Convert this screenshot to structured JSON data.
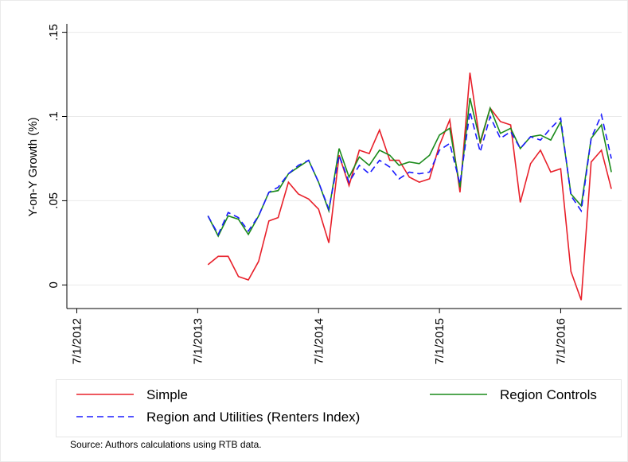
{
  "chart_data": {
    "type": "line",
    "y_label": "Y-on-Y Growth (%)",
    "note": "Source: Authors calculations using RTB data.",
    "x": [
      "2013-08-01",
      "2013-09-01",
      "2013-10-01",
      "2013-11-01",
      "2013-12-01",
      "2014-01-01",
      "2014-02-01",
      "2014-03-01",
      "2014-04-01",
      "2014-05-01",
      "2014-06-01",
      "2014-07-01",
      "2014-08-01",
      "2014-09-01",
      "2014-10-01",
      "2014-11-01",
      "2014-12-01",
      "2015-01-01",
      "2015-02-01",
      "2015-03-01",
      "2015-04-01",
      "2015-05-01",
      "2015-06-01",
      "2015-07-01",
      "2015-08-01",
      "2015-09-01",
      "2015-10-01",
      "2015-11-01",
      "2015-12-01",
      "2016-01-01",
      "2016-02-01",
      "2016-03-01",
      "2016-04-01",
      "2016-05-01",
      "2016-06-01",
      "2016-07-01",
      "2016-08-01",
      "2016-09-01",
      "2016-10-01",
      "2016-11-01",
      "2016-12-01"
    ],
    "series": [
      {
        "name": "Simple",
        "color": "#e8202a",
        "dashed": false,
        "values": [
          0.012,
          0.017,
          0.017,
          0.005,
          0.003,
          0.014,
          0.038,
          0.04,
          0.061,
          0.054,
          0.051,
          0.045,
          0.025,
          0.077,
          0.059,
          0.08,
          0.078,
          0.092,
          0.074,
          0.074,
          0.064,
          0.061,
          0.063,
          0.083,
          0.098,
          0.055,
          0.126,
          0.084,
          0.105,
          0.097,
          0.095,
          0.049,
          0.072,
          0.08,
          0.067,
          0.069,
          0.008,
          -0.009,
          0.073,
          0.08,
          0.057
        ]
      },
      {
        "name": "Region Controls",
        "color": "#1a8a1a",
        "dashed": false,
        "values": [
          0.041,
          0.029,
          0.041,
          0.039,
          0.03,
          0.041,
          0.055,
          0.056,
          0.066,
          0.07,
          0.074,
          0.061,
          0.044,
          0.081,
          0.064,
          0.076,
          0.071,
          0.08,
          0.077,
          0.071,
          0.073,
          0.072,
          0.077,
          0.089,
          0.093,
          0.058,
          0.111,
          0.085,
          0.105,
          0.09,
          0.093,
          0.081,
          0.088,
          0.089,
          0.086,
          0.097,
          0.054,
          0.047,
          0.087,
          0.095,
          0.067
        ]
      },
      {
        "name": "Region and Utilities (Renters Index)",
        "color": "#1a1aff",
        "dashed": true,
        "values": [
          0.041,
          0.03,
          0.043,
          0.04,
          0.032,
          0.041,
          0.055,
          0.058,
          0.066,
          0.071,
          0.074,
          0.061,
          0.045,
          0.077,
          0.061,
          0.071,
          0.066,
          0.074,
          0.07,
          0.063,
          0.067,
          0.066,
          0.067,
          0.08,
          0.084,
          0.06,
          0.103,
          0.079,
          0.1,
          0.087,
          0.091,
          0.081,
          0.088,
          0.086,
          0.093,
          0.099,
          0.053,
          0.044,
          0.087,
          0.101,
          0.075
        ]
      }
    ],
    "xlim": [
      "2012-06-01",
      "2017-01-01"
    ],
    "xticks": [
      {
        "value": "2012-07-01",
        "label": "7/1/2012"
      },
      {
        "value": "2013-07-01",
        "label": "7/1/2013"
      },
      {
        "value": "2014-07-01",
        "label": "7/1/2014"
      },
      {
        "value": "2015-07-01",
        "label": "7/1/2015"
      },
      {
        "value": "2016-07-01",
        "label": "7/1/2016"
      }
    ],
    "ylim": [
      -0.014,
      0.155
    ],
    "yticks": [
      0,
      {
        "value": 0.05,
        "label": ".05"
      },
      {
        "value": 0.1,
        "label": ".1"
      },
      {
        "value": 0.15,
        "label": ".15"
      }
    ],
    "grid": true
  }
}
